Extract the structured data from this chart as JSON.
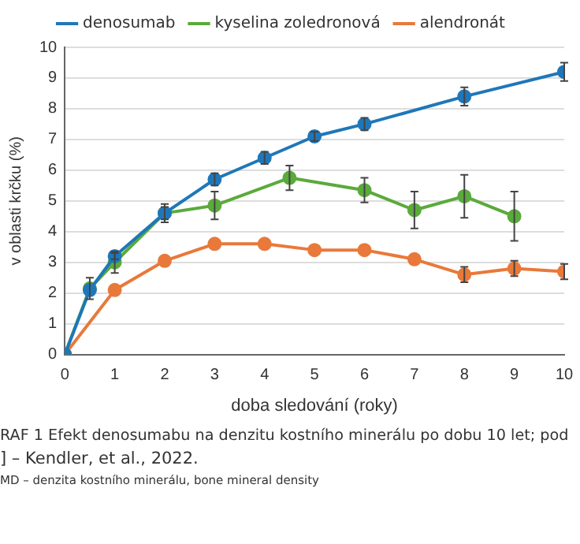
{
  "chart_data": {
    "type": "line",
    "xlabel": "doba sledování (roky)",
    "ylabel": "v oblasti krčku (%)",
    "xlim": [
      0,
      10
    ],
    "xticks": [
      0,
      1,
      2,
      3,
      4,
      5,
      6,
      7,
      8,
      9,
      10
    ],
    "ylim": [
      0,
      10
    ],
    "yticks": [
      0,
      1,
      2,
      3,
      4,
      5,
      6,
      7,
      8,
      9,
      10
    ],
    "grid": "y",
    "legend": "top",
    "marker": "circle",
    "line_style": "solid",
    "series": [
      {
        "name": "denosumab",
        "color": "#1f77b9",
        "x": [
          0,
          0.5,
          1,
          2,
          3,
          4,
          5,
          6,
          8,
          10
        ],
        "values": [
          0,
          2.1,
          3.2,
          4.6,
          5.7,
          6.4,
          7.1,
          7.5,
          8.4,
          9.2
        ],
        "errors": [
          null,
          null,
          0.1,
          0.2,
          0.2,
          0.2,
          0.15,
          0.2,
          0.3,
          0.3
        ]
      },
      {
        "name": "kyselina zoledronová",
        "color": "#5aaa3c",
        "x": [
          0,
          0.5,
          1,
          2,
          3,
          4.5,
          6,
          7,
          8,
          9
        ],
        "values": [
          0,
          2.15,
          3.0,
          4.6,
          4.85,
          5.75,
          5.35,
          4.7,
          5.15,
          4.5
        ],
        "errors": [
          null,
          0.35,
          0.35,
          0.3,
          0.45,
          0.4,
          0.4,
          0.6,
          0.7,
          0.8
        ]
      },
      {
        "name": "alendronát",
        "color": "#e8793a",
        "x": [
          0,
          1,
          2,
          3,
          4,
          5,
          6,
          7,
          8,
          9,
          10
        ],
        "values": [
          0,
          2.1,
          3.05,
          3.6,
          3.6,
          3.4,
          3.4,
          3.1,
          2.6,
          2.8,
          2.7
        ],
        "errors": [
          null,
          null,
          null,
          null,
          null,
          null,
          null,
          null,
          0.25,
          0.25,
          0.25
        ]
      }
    ],
    "annotations": [
      "RAF 1  Efekt denosumabu na denzitu kostního minerálu po dobu 10 let; pod",
      "] – Kendler, et al., 2022.",
      "MD – denzita kostního minerálu, bone mineral density"
    ]
  }
}
